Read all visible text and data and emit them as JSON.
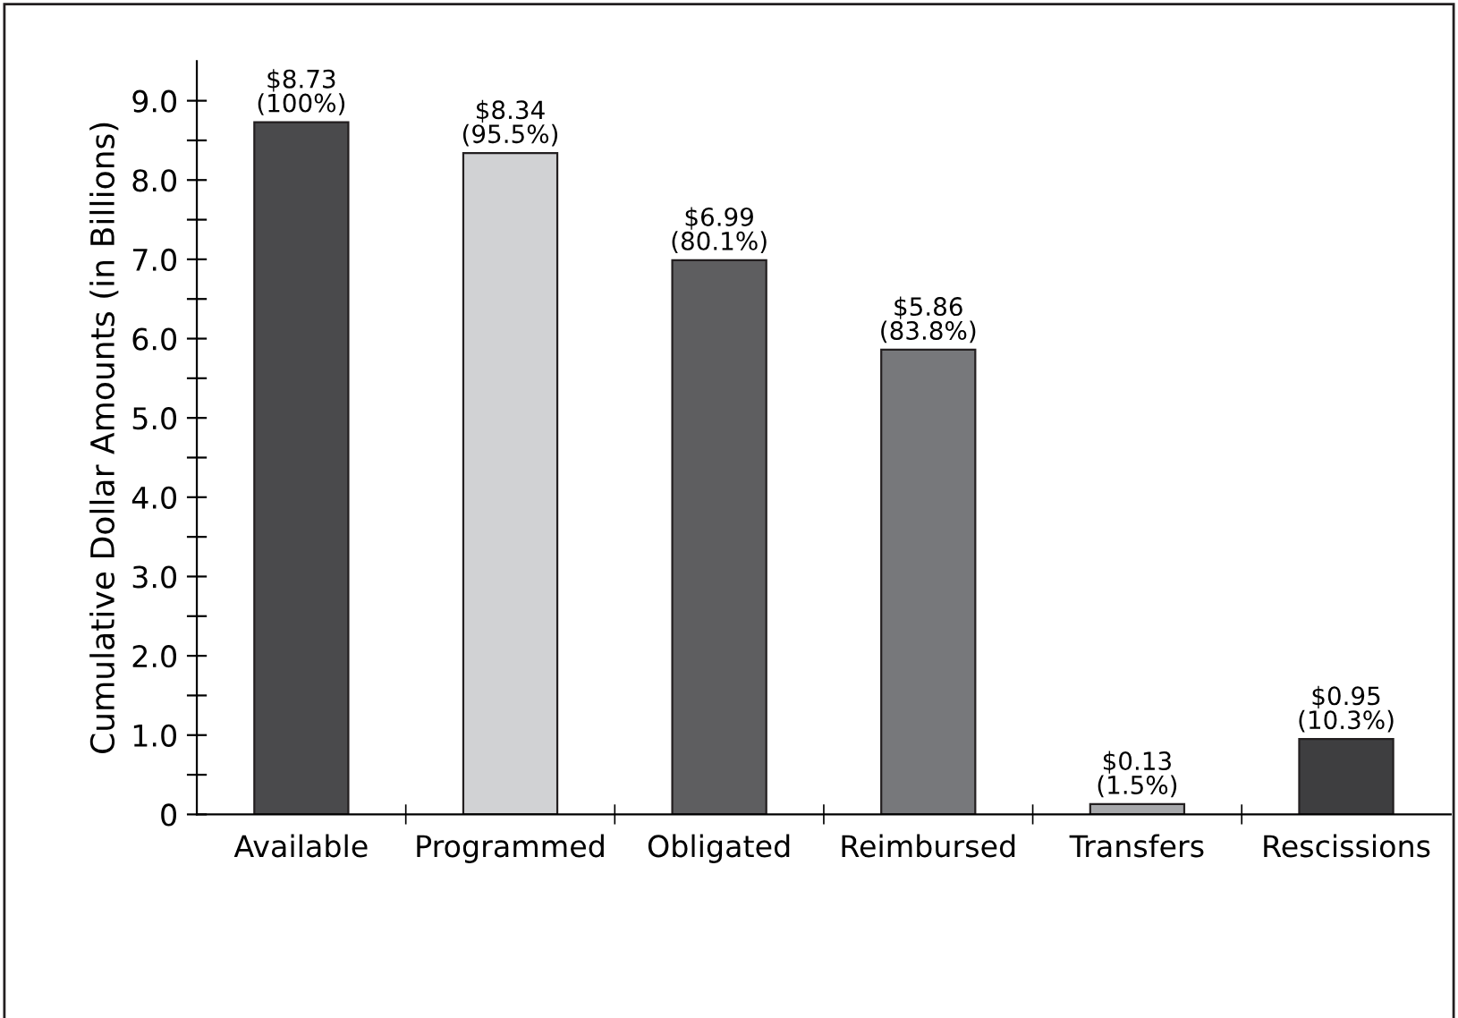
{
  "chart_data": {
    "type": "bar",
    "ylabel": "Cumulative Dollar Amounts (in Billions)",
    "categories": [
      "Available",
      "Programmed",
      "Obligated",
      "Reimbursed",
      "Transfers",
      "Rescissions"
    ],
    "values": [
      8.73,
      8.34,
      6.99,
      5.86,
      0.13,
      0.95
    ],
    "colors": [
      "#4a4a4c",
      "#d1d2d4",
      "#5e5e60",
      "#77787b",
      "#a7a8ab",
      "#3e3e40"
    ],
    "value_labels": [
      "$8.73\n(100%)",
      "$8.34\n(95.5%)",
      "$6.99\n(80.1%)",
      "$5.86\n(83.8%)",
      "$0.13\n(1.5%)",
      "$0.95\n(10.3%)"
    ],
    "ylim": [
      0,
      9.5
    ],
    "yticks": [
      0,
      {
        "value": 0.5,
        "label": null
      },
      {
        "value": 1,
        "label": "1.0"
      },
      {
        "value": 1.5,
        "label": null
      },
      {
        "value": 2,
        "label": "2.0"
      },
      {
        "value": 2.5,
        "label": null
      },
      {
        "value": 3,
        "label": "3.0"
      },
      {
        "value": 3.5,
        "label": null
      },
      {
        "value": 4,
        "label": "4.0"
      },
      {
        "value": 4.5,
        "label": null
      },
      {
        "value": 5,
        "label": "5.0"
      },
      {
        "value": 5.5,
        "label": null
      },
      {
        "value": 6,
        "label": "6.0"
      },
      {
        "value": 6.5,
        "label": null
      },
      {
        "value": 7,
        "label": "7.0"
      },
      {
        "value": 7.5,
        "label": null
      },
      {
        "value": 8,
        "label": "8.0"
      },
      {
        "value": 8.5,
        "label": null
      },
      {
        "value": 9,
        "label": "9.0"
      }
    ],
    "grid": false,
    "legend": false
  }
}
